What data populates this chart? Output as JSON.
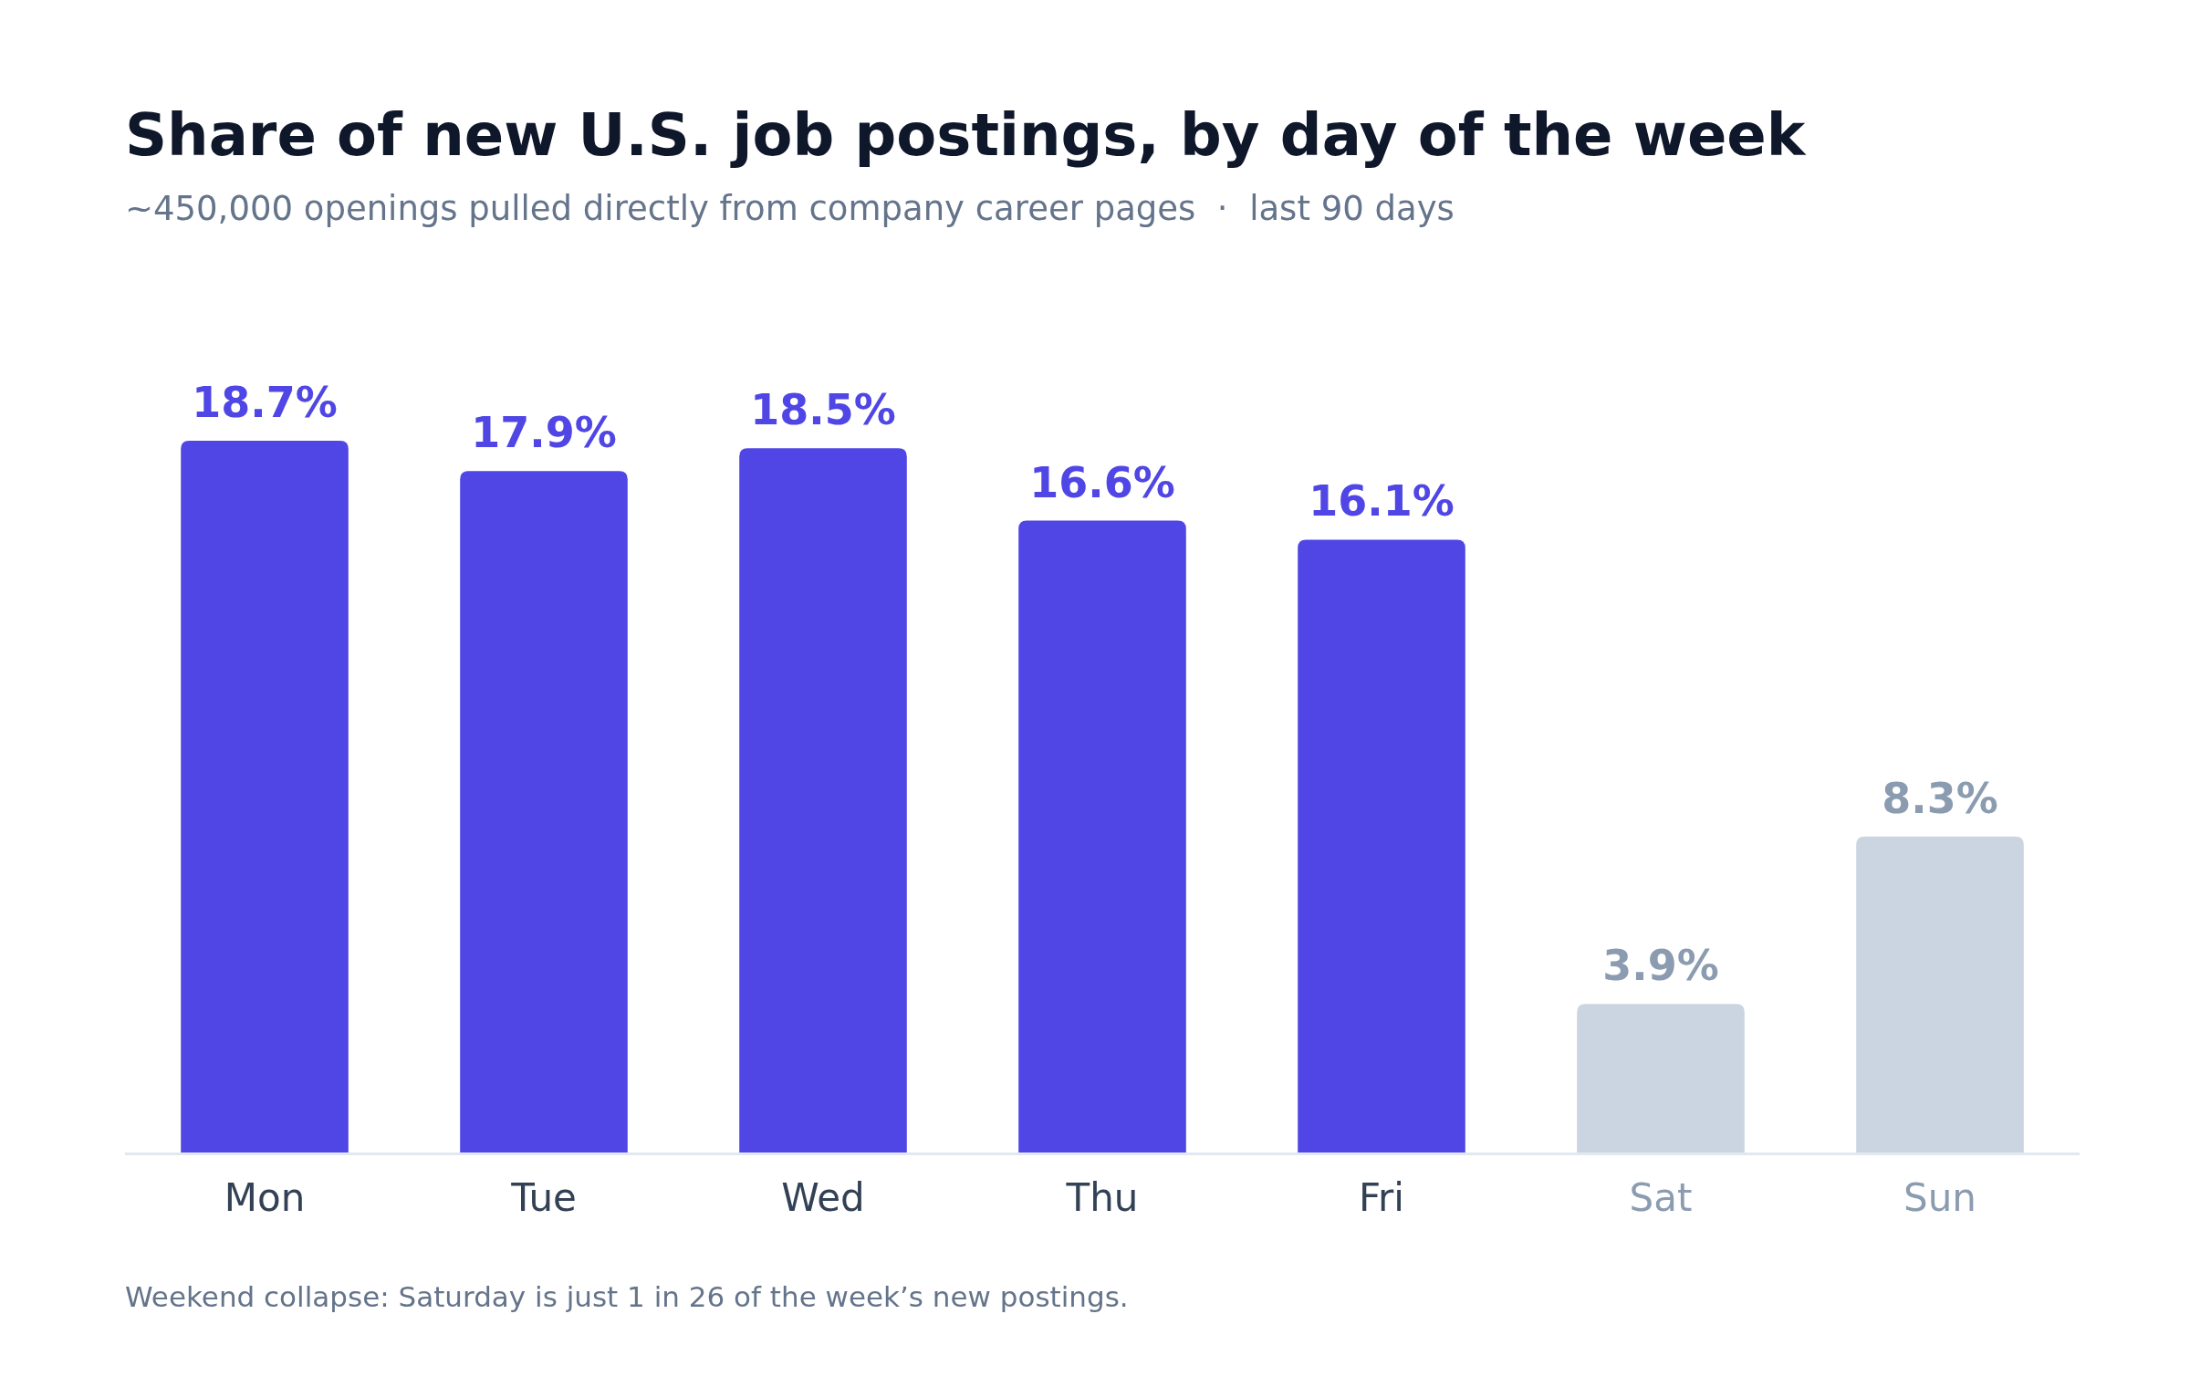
{
  "chart_data": {
    "type": "bar",
    "title": "Share of new U.S. job postings, by day of the week",
    "subtitle": "~450,000 openings pulled directly from company career pages  ·  last 90 days",
    "categories": [
      "Mon",
      "Tue",
      "Wed",
      "Thu",
      "Fri",
      "Sat",
      "Sun"
    ],
    "values": [
      18.7,
      17.9,
      18.5,
      16.6,
      16.1,
      3.9,
      8.3
    ],
    "colors": [
      "#4f46e5",
      "#4f46e5",
      "#4f46e5",
      "#4f46e5",
      "#4f46e5",
      "#cbd5e1",
      "#cbd5e1"
    ],
    "value_labels": [
      "18.7%",
      "17.9%",
      "18.5%",
      "16.6%",
      "16.1%",
      "3.9%",
      "8.3%"
    ],
    "annotations": [
      "Weekend collapse: Saturday is just 1 in 26 of the week’s new postings."
    ]
  }
}
